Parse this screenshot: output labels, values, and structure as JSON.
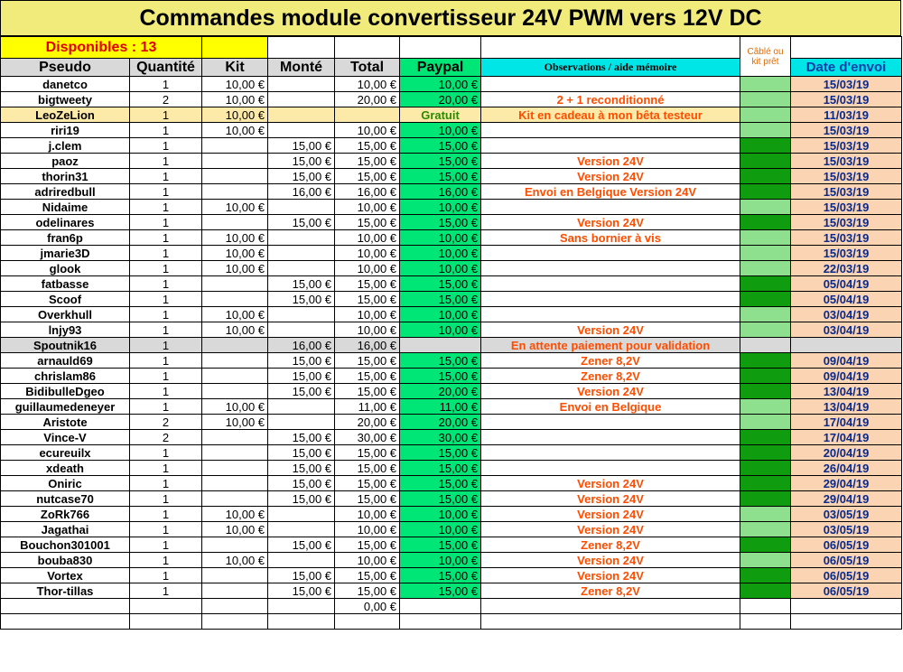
{
  "title": "Commandes module convertisseur 24V PWM vers 12V DC",
  "available": "Disponibles : 13",
  "cable_header": "Câblé ou kit prêt",
  "headers": {
    "pseudo": "Pseudo",
    "quantite": "Quantité",
    "kit": "Kit",
    "monte": "Monté",
    "total": "Total",
    "paypal": "Paypal",
    "observations": "Observations / aide mémoire",
    "date": "Date d'envoi"
  },
  "colors": {
    "title_bg": "#f0eb7a",
    "paypal_green": "#00e676",
    "cable_light": "#8edf8e",
    "cable_dark": "#0f9c0f",
    "date_bg": "#fbd4b4",
    "obs_text": "#ff4d00"
  },
  "rows": [
    {
      "pseudo": "danetco",
      "qty": "1",
      "kit": "10,00 €",
      "monte": "",
      "total": "10,00 €",
      "paypal": "10,00 €",
      "obs": "",
      "cable": "light",
      "date": "15/03/19"
    },
    {
      "pseudo": "bigtweety",
      "qty": "2",
      "kit": "10,00 €",
      "monte": "",
      "total": "20,00 €",
      "paypal": "20,00 €",
      "obs": "2 + 1 reconditionné",
      "cable": "light",
      "date": "15/03/19"
    },
    {
      "pseudo": "LeoZeLion",
      "qty": "1",
      "kit": "10,00 €",
      "monte": "",
      "total": "",
      "paypal": "Gratuit",
      "obs": "Kit en cadeau à mon bêta testeur",
      "cable": "light",
      "date": "11/03/19",
      "style": "leo"
    },
    {
      "pseudo": "riri19",
      "qty": "1",
      "kit": "10,00 €",
      "monte": "",
      "total": "10,00 €",
      "paypal": "10,00 €",
      "obs": "",
      "cable": "light",
      "date": "15/03/19"
    },
    {
      "pseudo": "j.clem",
      "qty": "1",
      "kit": "",
      "monte": "15,00 €",
      "total": "15,00 €",
      "paypal": "15,00 €",
      "obs": "",
      "cable": "dark",
      "date": "15/03/19"
    },
    {
      "pseudo": "paoz",
      "qty": "1",
      "kit": "",
      "monte": "15,00 €",
      "total": "15,00 €",
      "paypal": "15,00 €",
      "obs": "Version 24V",
      "cable": "dark",
      "date": "15/03/19"
    },
    {
      "pseudo": "thorin31",
      "qty": "1",
      "kit": "",
      "monte": "15,00 €",
      "total": "15,00 €",
      "paypal": "15,00 €",
      "obs": "Version 24V",
      "cable": "dark",
      "date": "15/03/19"
    },
    {
      "pseudo": "adriredbull",
      "qty": "1",
      "kit": "",
      "monte": "16,00 €",
      "total": "16,00 €",
      "paypal": "16,00 €",
      "obs": "Envoi en Belgique Version 24V",
      "cable": "dark",
      "date": "15/03/19"
    },
    {
      "pseudo": "Nidaime",
      "qty": "1",
      "kit": "10,00 €",
      "monte": "",
      "total": "10,00 €",
      "paypal": "10,00 €",
      "obs": "",
      "cable": "light",
      "date": "15/03/19"
    },
    {
      "pseudo": "odelinares",
      "qty": "1",
      "kit": "",
      "monte": "15,00 €",
      "total": "15,00 €",
      "paypal": "15,00 €",
      "obs": "Version 24V",
      "cable": "dark",
      "date": "15/03/19"
    },
    {
      "pseudo": "fran6p",
      "qty": "1",
      "kit": "10,00 €",
      "monte": "",
      "total": "10,00 €",
      "paypal": "10,00 €",
      "obs": "Sans bornier à vis",
      "cable": "light",
      "date": "15/03/19"
    },
    {
      "pseudo": "jmarie3D",
      "qty": "1",
      "kit": "10,00 €",
      "monte": "",
      "total": "10,00 €",
      "paypal": "10,00 €",
      "obs": "",
      "cable": "light",
      "date": "15/03/19"
    },
    {
      "pseudo": "glook",
      "qty": "1",
      "kit": "10,00 €",
      "monte": "",
      "total": "10,00 €",
      "paypal": "10,00 €",
      "obs": "",
      "cable": "light",
      "date": "22/03/19"
    },
    {
      "pseudo": "fatbasse",
      "qty": "1",
      "kit": "",
      "monte": "15,00 €",
      "total": "15,00 €",
      "paypal": "15,00 €",
      "obs": "",
      "cable": "dark",
      "date": "05/04/19"
    },
    {
      "pseudo": "Scoof",
      "qty": "1",
      "kit": "",
      "monte": "15,00 €",
      "total": "15,00 €",
      "paypal": "15,00 €",
      "obs": "",
      "cable": "dark",
      "date": "05/04/19"
    },
    {
      "pseudo": "Overkhull",
      "qty": "1",
      "kit": "10,00 €",
      "monte": "",
      "total": "10,00 €",
      "paypal": "10,00 €",
      "obs": "",
      "cable": "light",
      "date": "03/04/19"
    },
    {
      "pseudo": "lnjy93",
      "qty": "1",
      "kit": "10,00 €",
      "monte": "",
      "total": "10,00 €",
      "paypal": "10,00 €",
      "obs": "Version 24V",
      "cable": "light",
      "date": "03/04/19"
    },
    {
      "pseudo": "Spoutnik16",
      "qty": "1",
      "kit": "",
      "monte": "16,00 €",
      "total": "16,00 €",
      "paypal": "",
      "obs": "En attente paiement pour validation",
      "cable": "none",
      "date": "",
      "style": "sput"
    },
    {
      "pseudo": "arnauld69",
      "qty": "1",
      "kit": "",
      "monte": "15,00 €",
      "total": "15,00 €",
      "paypal": "15,00 €",
      "obs": "Zener 8,2V",
      "cable": "dark",
      "date": "09/04/19"
    },
    {
      "pseudo": "chrislam86",
      "qty": "1",
      "kit": "",
      "monte": "15,00 €",
      "total": "15,00 €",
      "paypal": "15,00 €",
      "obs": "Zener 8,2V",
      "cable": "dark",
      "date": "09/04/19"
    },
    {
      "pseudo": "BidibulleDgeo",
      "qty": "1",
      "kit": "",
      "monte": "15,00 €",
      "total": "15,00 €",
      "paypal": "20,00 €",
      "obs": "Version 24V",
      "cable": "dark",
      "date": "13/04/19"
    },
    {
      "pseudo": "guillaumedeneyer",
      "qty": "1",
      "kit": "10,00 €",
      "monte": "",
      "total": "11,00 €",
      "paypal": "11,00 €",
      "obs": "Envoi en Belgique",
      "cable": "light",
      "date": "13/04/19"
    },
    {
      "pseudo": "Aristote",
      "qty": "2",
      "kit": "10,00 €",
      "monte": "",
      "total": "20,00 €",
      "paypal": "20,00 €",
      "obs": "",
      "cable": "light",
      "date": "17/04/19"
    },
    {
      "pseudo": "Vince-V",
      "qty": "2",
      "kit": "",
      "monte": "15,00 €",
      "total": "30,00 €",
      "paypal": "30,00 €",
      "obs": "",
      "cable": "dark",
      "date": "17/04/19"
    },
    {
      "pseudo": "ecureuilx",
      "qty": "1",
      "kit": "",
      "monte": "15,00 €",
      "total": "15,00 €",
      "paypal": "15,00 €",
      "obs": "",
      "cable": "dark",
      "date": "20/04/19"
    },
    {
      "pseudo": "xdeath",
      "qty": "1",
      "kit": "",
      "monte": "15,00 €",
      "total": "15,00 €",
      "paypal": "15,00 €",
      "obs": "",
      "cable": "dark",
      "date": "26/04/19"
    },
    {
      "pseudo": "Oniric",
      "qty": "1",
      "kit": "",
      "monte": "15,00 €",
      "total": "15,00 €",
      "paypal": "15,00 €",
      "obs": "Version 24V",
      "cable": "dark",
      "date": "29/04/19"
    },
    {
      "pseudo": "nutcase70",
      "qty": "1",
      "kit": "",
      "monte": "15,00 €",
      "total": "15,00 €",
      "paypal": "15,00 €",
      "obs": "Version 24V",
      "cable": "dark",
      "date": "29/04/19"
    },
    {
      "pseudo": "ZoRk766",
      "qty": "1",
      "kit": "10,00 €",
      "monte": "",
      "total": "10,00 €",
      "paypal": "10,00 €",
      "obs": "Version 24V",
      "cable": "light",
      "date": "03/05/19"
    },
    {
      "pseudo": "Jagathai",
      "qty": "1",
      "kit": "10,00 €",
      "monte": "",
      "total": "10,00 €",
      "paypal": "10,00 €",
      "obs": "Version 24V",
      "cable": "light",
      "date": "03/05/19"
    },
    {
      "pseudo": "Bouchon301001",
      "qty": "1",
      "kit": "",
      "monte": "15,00 €",
      "total": "15,00 €",
      "paypal": "15,00 €",
      "obs": "Zener 8,2V",
      "cable": "dark",
      "date": "06/05/19"
    },
    {
      "pseudo": "bouba830",
      "qty": "1",
      "kit": "10,00 €",
      "monte": "",
      "total": "10,00 €",
      "paypal": "10,00 €",
      "obs": "Version 24V",
      "cable": "light",
      "date": "06/05/19"
    },
    {
      "pseudo": "Vortex",
      "qty": "1",
      "kit": "",
      "monte": "15,00 €",
      "total": "15,00 €",
      "paypal": "15,00 €",
      "obs": "Version 24V",
      "cable": "dark",
      "date": "06/05/19"
    },
    {
      "pseudo": "Thor-tillas",
      "qty": "1",
      "kit": "",
      "monte": "15,00 €",
      "total": "15,00 €",
      "paypal": "15,00 €",
      "obs": "Zener 8,2V",
      "cable": "dark",
      "date": "06/05/19"
    }
  ],
  "footer_total": "0,00 €"
}
